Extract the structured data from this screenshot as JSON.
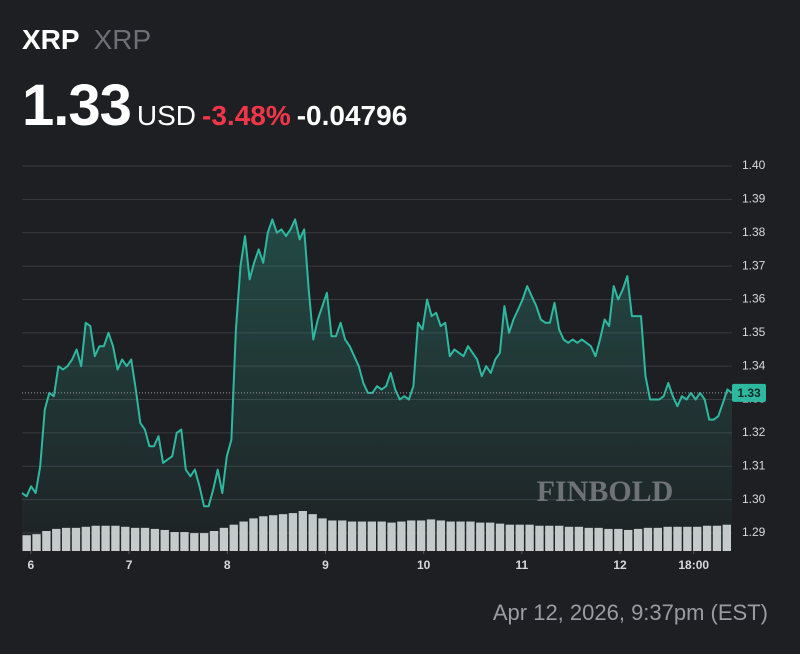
{
  "chart_data": {
    "type": "line",
    "symbol": "XRP",
    "name": "XRP",
    "price": "1.33",
    "currency": "USD",
    "change_percent": "-3.48%",
    "change": "-0.04796",
    "timestamp": "Apr 12, 2026, 9:37pm (EST)",
    "watermark": "FINBOLD",
    "xlim": [
      5.91,
      13.14
    ],
    "xticks": [
      6,
      7,
      8,
      9,
      10,
      11,
      12,
      {
        "value": 12.75,
        "label": "18:00"
      }
    ],
    "ylim": [
      1.2846,
      1.4033
    ],
    "yticks": [
      1.29,
      {
        "value": 1.3,
        "label": "1.30"
      },
      1.31,
      1.32,
      1.33,
      1.34,
      1.35,
      1.36,
      1.37,
      1.38,
      1.39,
      {
        "value": 1.4,
        "label": "1.40"
      }
    ],
    "grid": true,
    "series": [
      {
        "name": "XRP",
        "color": "#2fb8a0",
        "values": [
          1.302,
          1.301,
          1.304,
          1.302,
          1.31,
          1.327,
          1.332,
          1.331,
          1.34,
          1.339,
          1.34,
          1.342,
          1.345,
          1.34,
          1.353,
          1.352,
          1.343,
          1.346,
          1.346,
          1.35,
          1.346,
          1.339,
          1.342,
          1.34,
          1.342,
          1.333,
          1.323,
          1.321,
          1.316,
          1.316,
          1.319,
          1.311,
          1.312,
          1.313,
          1.32,
          1.321,
          1.309,
          1.307,
          1.309,
          1.304,
          1.298,
          1.298,
          1.303,
          1.309,
          1.302,
          1.313,
          1.318,
          1.351,
          1.37,
          1.379,
          1.366,
          1.371,
          1.375,
          1.371,
          1.38,
          1.384,
          1.38,
          1.381,
          1.379,
          1.381,
          1.384,
          1.378,
          1.381,
          1.363,
          1.348,
          1.354,
          1.358,
          1.362,
          1.349,
          1.349,
          1.353,
          1.348,
          1.346,
          1.343,
          1.34,
          1.335,
          1.332,
          1.332,
          1.334,
          1.333,
          1.334,
          1.338,
          1.333,
          1.33,
          1.331,
          1.33,
          1.334,
          1.353,
          1.351,
          1.36,
          1.355,
          1.356,
          1.352,
          1.353,
          1.343,
          1.345,
          1.344,
          1.343,
          1.346,
          1.344,
          1.342,
          1.337,
          1.34,
          1.338,
          1.342,
          1.344,
          1.358,
          1.35,
          1.354,
          1.357,
          1.36,
          1.364,
          1.361,
          1.358,
          1.354,
          1.353,
          1.353,
          1.359,
          1.351,
          1.348,
          1.347,
          1.348,
          1.347,
          1.348,
          1.347,
          1.346,
          1.343,
          1.348,
          1.354,
          1.352,
          1.364,
          1.36,
          1.363,
          1.367,
          1.355,
          1.355,
          1.355,
          1.337,
          1.33,
          1.33,
          1.33,
          1.331,
          1.335,
          1.331,
          1.328,
          1.331,
          1.33,
          1.332,
          1.33,
          1.332,
          1.33,
          1.324,
          1.324,
          1.325,
          1.329,
          1.333,
          1.332
        ]
      }
    ],
    "volume": {
      "color": "#c9cacc",
      "values": [
        15,
        16,
        19,
        21,
        22,
        22,
        23,
        24,
        24,
        24,
        23,
        22,
        22,
        21,
        20,
        18,
        18,
        17,
        17,
        19,
        22,
        25,
        28,
        31,
        33,
        34,
        35,
        36,
        38,
        35,
        31,
        29,
        29,
        28,
        28,
        28,
        28,
        27,
        28,
        29,
        29,
        30,
        29,
        28,
        28,
        28,
        27,
        27,
        26,
        25,
        25,
        25,
        24,
        24,
        24,
        23,
        23,
        22,
        22,
        21,
        21,
        20,
        21,
        22,
        22,
        23,
        23,
        23,
        23,
        24,
        24,
        25
      ]
    }
  }
}
